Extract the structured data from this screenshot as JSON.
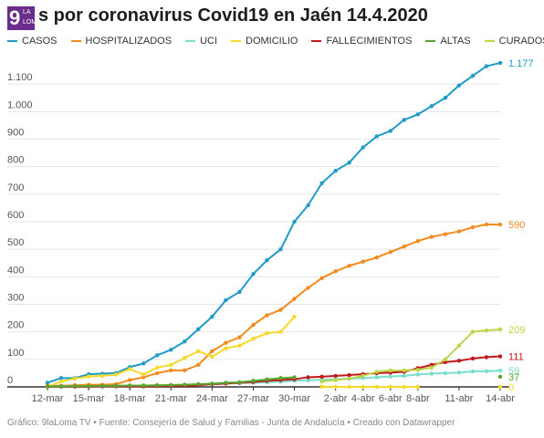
{
  "header": {
    "logo_number": "9",
    "logo_line1": "LA",
    "logo_line2": "LOMA",
    "title": "s por coronavirus Covid19 en Jaén 14.4.2020"
  },
  "footer": {
    "text": "Gráfico: 9laLoma TV • Fuente: Consejería de Salud y Familias - Junta de Andalucía • Creado con Datawrapper"
  },
  "colors": {
    "logo": "#6b2d8b",
    "grid": "#e6e6e6",
    "axis": "#333333",
    "tick_text": "#555555"
  },
  "chart_data": {
    "type": "line",
    "x_tick_labels": [
      "12-mar",
      "15-mar",
      "18-mar",
      "21-mar",
      "24-mar",
      "27-mar",
      "30-mar",
      "2-abr",
      "4-abr",
      "6-abr",
      "8-abr",
      "11-abr",
      "14-abr"
    ],
    "x_tick_days": [
      0,
      3,
      6,
      9,
      12,
      15,
      18,
      21,
      23,
      25,
      27,
      30,
      33
    ],
    "x_range": [
      0,
      33
    ],
    "y_ticks": [
      0,
      100,
      200,
      300,
      400,
      500,
      600,
      700,
      800,
      900,
      1000,
      1100
    ],
    "y_tick_labels": [
      "0",
      "100",
      "200",
      "300",
      "400",
      "500",
      "600",
      "700",
      "800",
      "900",
      "1.000",
      "1.100"
    ],
    "ylim": [
      0,
      1200
    ],
    "series": [
      {
        "name": "CASOS",
        "color": "#1f9bc7",
        "start_day": 0,
        "end_label": "1.177",
        "values": [
          15,
          32,
          32,
          46,
          48,
          50,
          72,
          85,
          115,
          135,
          165,
          210,
          255,
          315,
          345,
          410,
          460,
          500,
          600,
          660,
          740,
          785,
          815,
          870,
          910,
          930,
          970,
          990,
          1020,
          1050,
          1095,
          1130,
          1165,
          1177
        ]
      },
      {
        "name": "HOSPITALIZADOS",
        "color": "#f58a1f",
        "start_day": 0,
        "end_label": "590",
        "values": [
          4,
          4,
          6,
          8,
          8,
          10,
          25,
          35,
          50,
          60,
          60,
          80,
          130,
          160,
          180,
          225,
          260,
          280,
          320,
          360,
          395,
          420,
          440,
          455,
          470,
          490,
          510,
          530,
          545,
          555,
          565,
          580,
          590,
          590
        ]
      },
      {
        "name": "UCI",
        "color": "#79dfcc",
        "start_day": 0,
        "end_label": "59",
        "values": [
          1,
          1,
          1,
          1,
          1,
          2,
          3,
          3,
          4,
          5,
          6,
          8,
          10,
          12,
          14,
          15,
          17,
          19,
          22,
          24,
          26,
          28,
          30,
          32,
          35,
          38,
          40,
          45,
          48,
          50,
          52,
          56,
          57,
          59
        ]
      },
      {
        "name": "DOMICILIO",
        "color": "#f5d92c",
        "start_day": 0,
        "end_label": "0",
        "values": [
          0,
          20,
          30,
          38,
          40,
          45,
          65,
          45,
          70,
          80,
          105,
          130,
          110,
          140,
          150,
          175,
          195,
          200,
          255,
          null,
          1,
          0,
          0,
          0,
          0,
          0,
          0,
          0,
          null,
          null,
          null,
          null,
          null,
          0
        ]
      },
      {
        "name": "FALLECIMIENTOS",
        "color": "#c21a1a",
        "start_day": 0,
        "end_label": "111",
        "values": [
          1,
          1,
          1,
          1,
          2,
          2,
          2,
          2,
          3,
          3,
          4,
          6,
          10,
          12,
          15,
          18,
          22,
          25,
          28,
          35,
          37,
          40,
          43,
          46,
          50,
          52,
          55,
          68,
          80,
          90,
          95,
          103,
          108,
          111
        ]
      },
      {
        "name": "ALTAS",
        "color": "#57a62f",
        "start_day": 0,
        "end_label": "37",
        "values": [
          2,
          2,
          3,
          3,
          4,
          4,
          5,
          5,
          6,
          7,
          8,
          10,
          12,
          15,
          17,
          22,
          27,
          32,
          35,
          null,
          null,
          null,
          null,
          null,
          null,
          null,
          null,
          null,
          null,
          null,
          null,
          null,
          null,
          37
        ]
      },
      {
        "name": "CURADOS",
        "color": "#bcd64a",
        "start_day": 20,
        "end_label": "209",
        "values": [
          20,
          25,
          30,
          40,
          55,
          60,
          60,
          62,
          70,
          100,
          150,
          200,
          205,
          209
        ]
      }
    ]
  }
}
